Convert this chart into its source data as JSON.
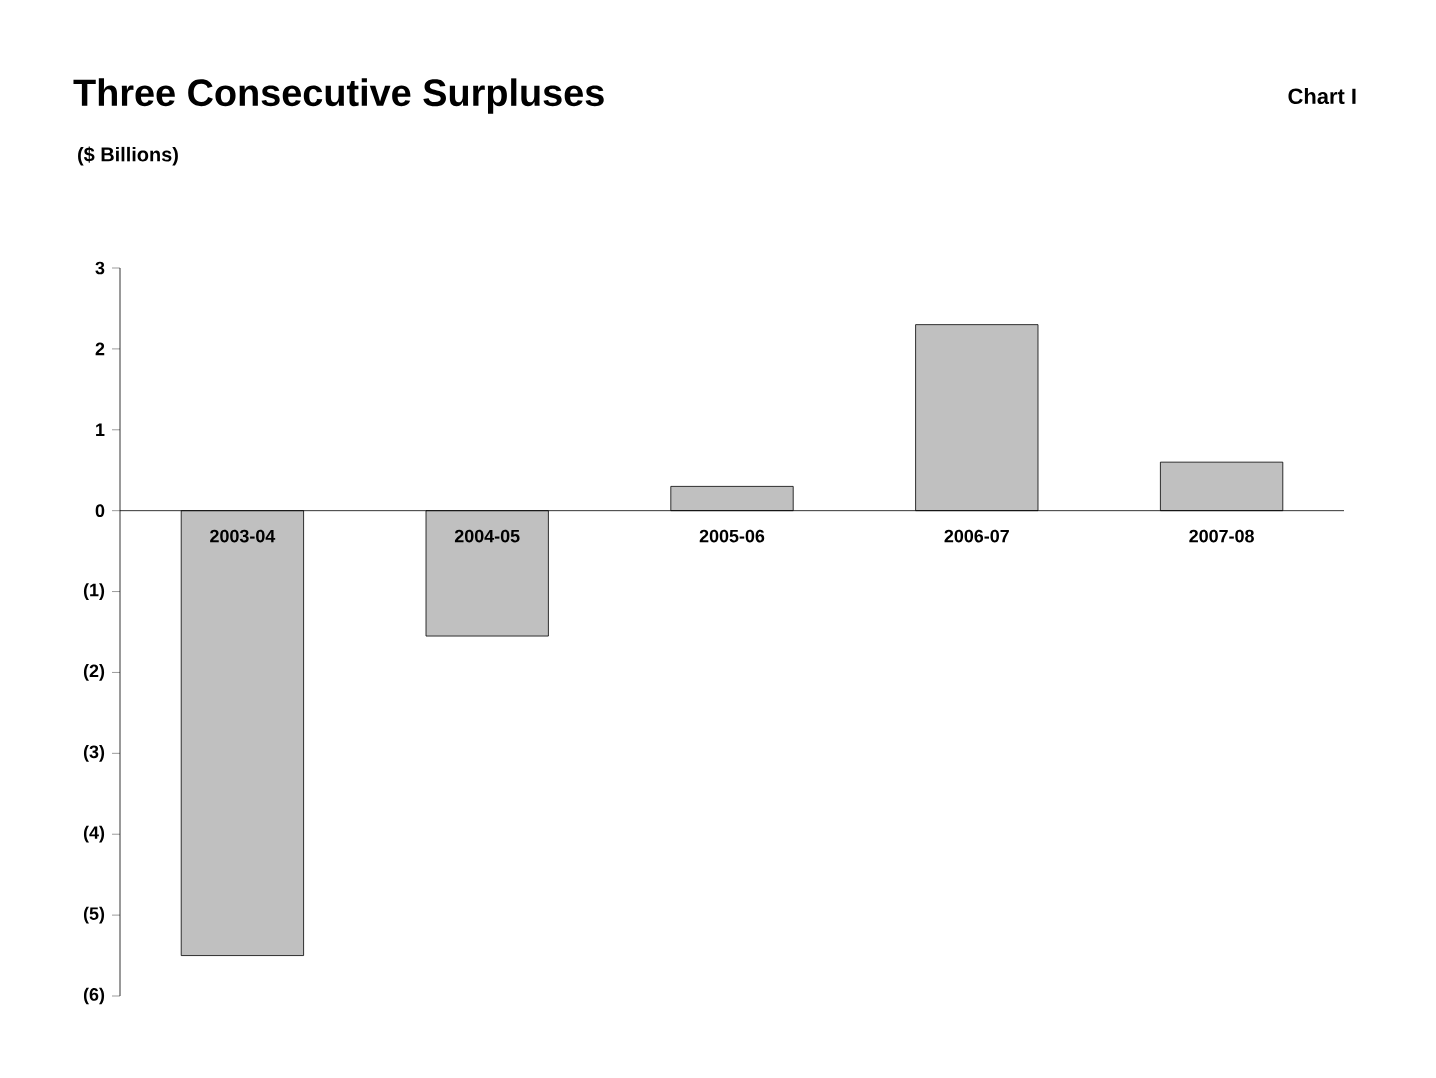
{
  "chart_data": {
    "type": "bar",
    "title": "Three Consecutive Surpluses",
    "subtitle": "($ Billions)",
    "annotations": [
      "Chart I"
    ],
    "categories": [
      "2003-04",
      "2004-05",
      "2005-06",
      "2006-07",
      "2007-08"
    ],
    "values": [
      -5.5,
      -1.55,
      0.3,
      2.3,
      0.6
    ],
    "color": "#c0c0c0",
    "ylim": [
      -6,
      3
    ],
    "yticks": [
      {
        "value": -6,
        "label": "(6)"
      },
      {
        "value": -5,
        "label": "(5)"
      },
      {
        "value": -4,
        "label": "(4)"
      },
      {
        "value": -3,
        "label": "(3)"
      },
      {
        "value": -2,
        "label": "(2)"
      },
      {
        "value": -1,
        "label": "(1)"
      },
      0,
      1,
      2,
      3
    ]
  }
}
